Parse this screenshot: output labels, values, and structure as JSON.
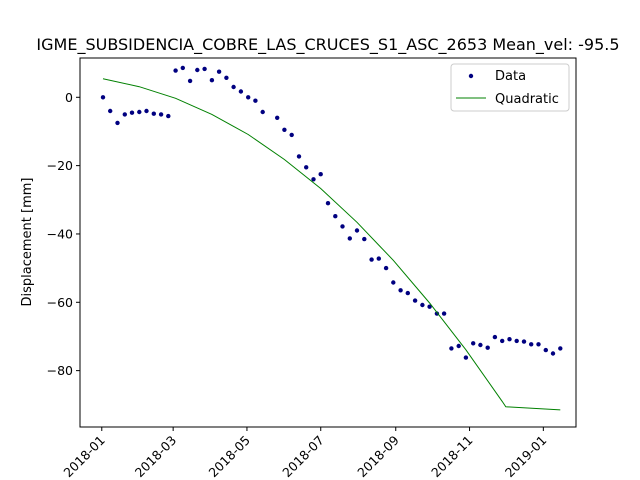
{
  "chart_data": {
    "type": "scatter",
    "title": "IGME_SUBSIDENCIA_COBRE_LAS_CRUCES_S1_ASC_2653    Mean_vel: -95.5",
    "xlabel": "",
    "ylabel": "Displacement [mm]",
    "x_ticks": [
      "2018-01",
      "2018-03",
      "2018-05",
      "2018-07",
      "2018-09",
      "2018-11",
      "2019-01"
    ],
    "x_tick_dates": [
      "2018-01-01",
      "2018-03-01",
      "2018-05-01",
      "2018-07-01",
      "2018-09-01",
      "2018-11-01",
      "2019-01-01"
    ],
    "y_ticks": [
      "0",
      "−20",
      "−40",
      "−60",
      "−80"
    ],
    "y_tick_values": [
      0,
      -20,
      -40,
      -60,
      -80
    ],
    "xlim": [
      "2017-12-14",
      "2019-01-28"
    ],
    "ylim": [
      -96.5,
      11.5
    ],
    "legend": {
      "position": "top-right"
    },
    "series": [
      {
        "name": "Data",
        "kind": "markers",
        "color": "#000080",
        "points": [
          [
            "2018-01-02",
            0.0
          ],
          [
            "2018-01-08",
            -4.0
          ],
          [
            "2018-01-14",
            -7.5
          ],
          [
            "2018-01-20",
            -5.0
          ],
          [
            "2018-01-26",
            -4.5
          ],
          [
            "2018-02-01",
            -4.3
          ],
          [
            "2018-02-07",
            -4.0
          ],
          [
            "2018-02-13",
            -4.8
          ],
          [
            "2018-02-19",
            -5.0
          ],
          [
            "2018-02-25",
            -5.5
          ],
          [
            "2018-03-03",
            7.8
          ],
          [
            "2018-03-09",
            8.6
          ],
          [
            "2018-03-15",
            4.8
          ],
          [
            "2018-03-21",
            8.0
          ],
          [
            "2018-03-27",
            8.3
          ],
          [
            "2018-04-02",
            5.0
          ],
          [
            "2018-04-08",
            7.5
          ],
          [
            "2018-04-14",
            5.7
          ],
          [
            "2018-04-20",
            3.0
          ],
          [
            "2018-04-26",
            1.7
          ],
          [
            "2018-05-02",
            0.0
          ],
          [
            "2018-05-08",
            -1.0
          ],
          [
            "2018-05-14",
            -4.3
          ],
          [
            "2018-05-26",
            -6.0
          ],
          [
            "2018-06-01",
            -9.5
          ],
          [
            "2018-06-07",
            -11.0
          ],
          [
            "2018-06-13",
            -17.3
          ],
          [
            "2018-06-19",
            -20.5
          ],
          [
            "2018-06-25",
            -24.0
          ],
          [
            "2018-07-01",
            -22.5
          ],
          [
            "2018-07-07",
            -31.0
          ],
          [
            "2018-07-13",
            -34.8
          ],
          [
            "2018-07-19",
            -37.8
          ],
          [
            "2018-07-25",
            -41.3
          ],
          [
            "2018-07-31",
            -39.0
          ],
          [
            "2018-08-06",
            -41.5
          ],
          [
            "2018-08-12",
            -47.5
          ],
          [
            "2018-08-18",
            -47.2
          ],
          [
            "2018-08-24",
            -50.0
          ],
          [
            "2018-08-30",
            -54.2
          ],
          [
            "2018-09-05",
            -56.5
          ],
          [
            "2018-09-11",
            -57.3
          ],
          [
            "2018-09-17",
            -59.5
          ],
          [
            "2018-09-23",
            -60.8
          ],
          [
            "2018-09-29",
            -61.3
          ],
          [
            "2018-10-05",
            -63.3
          ],
          [
            "2018-10-11",
            -63.3
          ],
          [
            "2018-10-17",
            -73.5
          ],
          [
            "2018-10-23",
            -72.8
          ],
          [
            "2018-10-29",
            -76.2
          ],
          [
            "2018-11-04",
            -72.0
          ],
          [
            "2018-11-10",
            -72.5
          ],
          [
            "2018-11-16",
            -73.3
          ],
          [
            "2018-11-22",
            -70.2
          ],
          [
            "2018-11-28",
            -71.3
          ],
          [
            "2018-12-04",
            -70.8
          ],
          [
            "2018-12-10",
            -71.3
          ],
          [
            "2018-12-16",
            -71.5
          ],
          [
            "2018-12-22",
            -72.3
          ],
          [
            "2018-12-28",
            -72.3
          ],
          [
            "2019-01-03",
            -74.0
          ],
          [
            "2019-01-09",
            -75.0
          ],
          [
            "2019-01-15",
            -73.5
          ]
        ]
      },
      {
        "name": "Quadratic",
        "kind": "line",
        "color": "#008000",
        "points": [
          [
            "2018-01-02",
            5.4
          ],
          [
            "2018-02-01",
            3.1
          ],
          [
            "2018-03-03",
            -0.3
          ],
          [
            "2018-04-02",
            -5.0
          ],
          [
            "2018-05-02",
            -10.9
          ],
          [
            "2018-06-01",
            -18.2
          ],
          [
            "2018-07-01",
            -26.7
          ],
          [
            "2018-07-31",
            -36.6
          ],
          [
            "2018-08-30",
            -47.7
          ],
          [
            "2018-09-29",
            -60.2
          ],
          [
            "2018-10-29",
            -73.9
          ],
          [
            "2018-11-28",
            -89.0
          ],
          [
            "2018-12-01",
            -90.6
          ],
          [
            "2019-01-15",
            -91.5
          ]
        ]
      }
    ]
  }
}
